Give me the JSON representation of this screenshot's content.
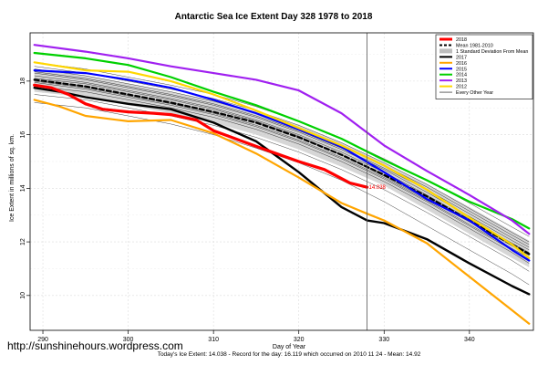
{
  "watermark": "http://sunshinehours.wordpress.com",
  "chart_data": {
    "type": "line",
    "title": "Antarctic Sea Ice Extent Day 328 1978 to 2018",
    "xlabel": "Day of Year",
    "ylabel": "Ice Extent in millions of sq. km.",
    "footer": "Today's Ice Extent: 14.038 - Record for the day: 16.119 which occurred on 2010 11 24 - Mean: 14.92",
    "xlim": [
      288.5,
      347.5
    ],
    "ylim": [
      8.7,
      19.8
    ],
    "x_ticks": [
      290,
      300,
      310,
      320,
      330,
      340
    ],
    "y_ticks": [
      10,
      12,
      14,
      16,
      18
    ],
    "grid": true,
    "legend_position": "top-right",
    "vline_x": 328,
    "point_label": {
      "x": 328,
      "y": 14.04,
      "text": "14.038"
    },
    "legend": [
      {
        "label": "2018",
        "color": "#ff0000",
        "style": "solid"
      },
      {
        "label": "Mean 1981-2010",
        "color": "#000000",
        "style": "dashed"
      },
      {
        "label": "1 Standard Deviation From Mean",
        "color": "#bdbdbd",
        "style": "band"
      },
      {
        "label": "2017",
        "color": "#000000",
        "style": "solid"
      },
      {
        "label": "2016",
        "color": "#ffa500",
        "style": "solid"
      },
      {
        "label": "2015",
        "color": "#0000ff",
        "style": "solid"
      },
      {
        "label": "2014",
        "color": "#00d000",
        "style": "solid"
      },
      {
        "label": "2013",
        "color": "#a020f0",
        "style": "solid"
      },
      {
        "label": "2012",
        "color": "#ffd700",
        "style": "solid"
      },
      {
        "label": "Every Other Year",
        "color": "#000000",
        "style": "thin"
      }
    ],
    "band": {
      "x": [
        289,
        295,
        300,
        305,
        310,
        315,
        320,
        325,
        330,
        335,
        340,
        345,
        347
      ],
      "upper": [
        18.45,
        18.2,
        17.9,
        17.6,
        17.25,
        16.85,
        16.35,
        15.7,
        14.95,
        14.15,
        13.3,
        12.4,
        12.05
      ],
      "lower": [
        17.6,
        17.4,
        17.1,
        16.8,
        16.45,
        16.0,
        15.45,
        14.8,
        14.1,
        13.2,
        12.3,
        11.4,
        11.05
      ]
    },
    "series": [
      {
        "name": "Mean 1981-2010",
        "color": "#000000",
        "width": 2.2,
        "dash": "5,3",
        "x": [
          289,
          295,
          300,
          305,
          310,
          315,
          320,
          325,
          330,
          335,
          340,
          345,
          347
        ],
        "y": [
          18.05,
          17.8,
          17.5,
          17.2,
          16.85,
          16.45,
          15.9,
          15.25,
          14.5,
          13.7,
          12.8,
          11.9,
          11.55
        ]
      },
      {
        "name": "2017",
        "color": "#000000",
        "width": 2.4,
        "x": [
          289,
          292,
          295,
          300,
          305,
          310,
          315,
          320,
          325,
          328,
          330,
          335,
          340,
          345,
          347
        ],
        "y": [
          17.75,
          17.6,
          17.4,
          17.15,
          16.95,
          16.45,
          15.75,
          14.6,
          13.3,
          12.8,
          12.7,
          12.1,
          11.2,
          10.35,
          10.05
        ]
      },
      {
        "name": "2016",
        "color": "#ffa500",
        "width": 2.2,
        "x": [
          289,
          292,
          295,
          300,
          305,
          310,
          315,
          320,
          325,
          328,
          330,
          335,
          340,
          345,
          347
        ],
        "y": [
          17.3,
          17.05,
          16.7,
          16.5,
          16.55,
          16.05,
          15.3,
          14.4,
          13.45,
          13.05,
          12.8,
          11.95,
          10.7,
          9.45,
          8.95
        ]
      },
      {
        "name": "2015",
        "color": "#0000ff",
        "width": 2.2,
        "x": [
          289,
          295,
          300,
          305,
          310,
          315,
          320,
          325,
          330,
          335,
          340,
          345,
          347
        ],
        "y": [
          18.4,
          18.3,
          18.05,
          17.75,
          17.3,
          16.8,
          16.2,
          15.55,
          14.6,
          13.6,
          12.8,
          11.7,
          11.3
        ]
      },
      {
        "name": "2014",
        "color": "#00d000",
        "width": 2.2,
        "x": [
          289,
          295,
          300,
          305,
          310,
          315,
          320,
          325,
          330,
          335,
          340,
          345,
          347
        ],
        "y": [
          19.05,
          18.85,
          18.6,
          18.15,
          17.6,
          17.1,
          16.5,
          15.85,
          15.05,
          14.3,
          13.5,
          12.85,
          12.5
        ]
      },
      {
        "name": "2013",
        "color": "#a020f0",
        "width": 2.2,
        "x": [
          289,
          295,
          300,
          305,
          310,
          315,
          320,
          325,
          330,
          335,
          340,
          345,
          347
        ],
        "y": [
          19.35,
          19.1,
          18.85,
          18.55,
          18.3,
          18.05,
          17.65,
          16.8,
          15.6,
          14.65,
          13.75,
          12.8,
          12.3
        ]
      },
      {
        "name": "2012",
        "color": "#ffd700",
        "width": 2.2,
        "x": [
          289,
          295,
          300,
          305,
          310,
          315,
          320,
          325,
          330,
          335,
          340,
          345,
          347
        ],
        "y": [
          18.7,
          18.4,
          18.35,
          18.0,
          17.5,
          16.9,
          16.25,
          15.6,
          14.85,
          13.95,
          12.9,
          11.9,
          11.4
        ]
      },
      {
        "name": "2018",
        "color": "#ff0000",
        "width": 3.2,
        "x": [
          289,
          291,
          293,
          295,
          297,
          300,
          303,
          305,
          308,
          310,
          313,
          316,
          320,
          323,
          326,
          328
        ],
        "y": [
          17.85,
          17.75,
          17.5,
          17.15,
          16.95,
          16.85,
          16.8,
          16.75,
          16.55,
          16.15,
          15.8,
          15.45,
          15.0,
          14.7,
          14.2,
          14.04
        ]
      }
    ],
    "other_years": [
      [
        17.2,
        17.0,
        16.7,
        16.4,
        16.0,
        15.5,
        14.95,
        14.3,
        13.5,
        12.6,
        11.7,
        10.8,
        10.4
      ],
      [
        17.5,
        17.3,
        17.0,
        16.7,
        16.35,
        15.9,
        15.35,
        14.7,
        13.95,
        13.1,
        12.2,
        11.3,
        10.9
      ],
      [
        17.8,
        17.6,
        17.3,
        17.0,
        16.65,
        16.2,
        15.65,
        15.0,
        14.25,
        13.4,
        12.5,
        11.6,
        11.2
      ],
      [
        18.0,
        17.75,
        17.45,
        17.15,
        16.8,
        16.35,
        15.8,
        15.15,
        14.4,
        13.55,
        12.65,
        11.75,
        11.4
      ],
      [
        18.2,
        17.95,
        17.65,
        17.35,
        17.0,
        16.55,
        16.0,
        15.35,
        14.6,
        13.75,
        12.85,
        11.95,
        11.6
      ],
      [
        18.35,
        18.1,
        17.8,
        17.5,
        17.15,
        16.7,
        16.15,
        15.5,
        14.75,
        13.95,
        13.05,
        12.15,
        11.8
      ],
      [
        18.55,
        18.3,
        18.0,
        17.7,
        17.35,
        16.9,
        16.35,
        15.7,
        14.95,
        14.15,
        13.25,
        12.35,
        12.0
      ],
      [
        18.7,
        18.45,
        18.15,
        17.85,
        17.5,
        17.05,
        16.5,
        15.85,
        15.1,
        14.3,
        13.45,
        12.55,
        12.2
      ],
      [
        18.1,
        17.9,
        17.6,
        17.3,
        16.95,
        16.5,
        15.95,
        15.25,
        14.45,
        13.6,
        12.75,
        11.85,
        11.5
      ],
      [
        17.95,
        17.7,
        17.4,
        17.1,
        16.75,
        16.3,
        15.75,
        15.1,
        14.35,
        13.5,
        12.6,
        11.7,
        11.35
      ],
      [
        18.3,
        18.05,
        17.75,
        17.45,
        17.1,
        16.65,
        16.1,
        15.45,
        14.7,
        13.85,
        12.95,
        12.05,
        11.7
      ],
      [
        18.45,
        18.2,
        17.9,
        17.6,
        17.25,
        16.8,
        16.25,
        15.6,
        14.85,
        14.05,
        13.15,
        12.25,
        11.9
      ]
    ],
    "other_years_x": [
      289,
      295,
      300,
      305,
      310,
      315,
      320,
      325,
      330,
      335,
      340,
      345,
      347
    ]
  }
}
